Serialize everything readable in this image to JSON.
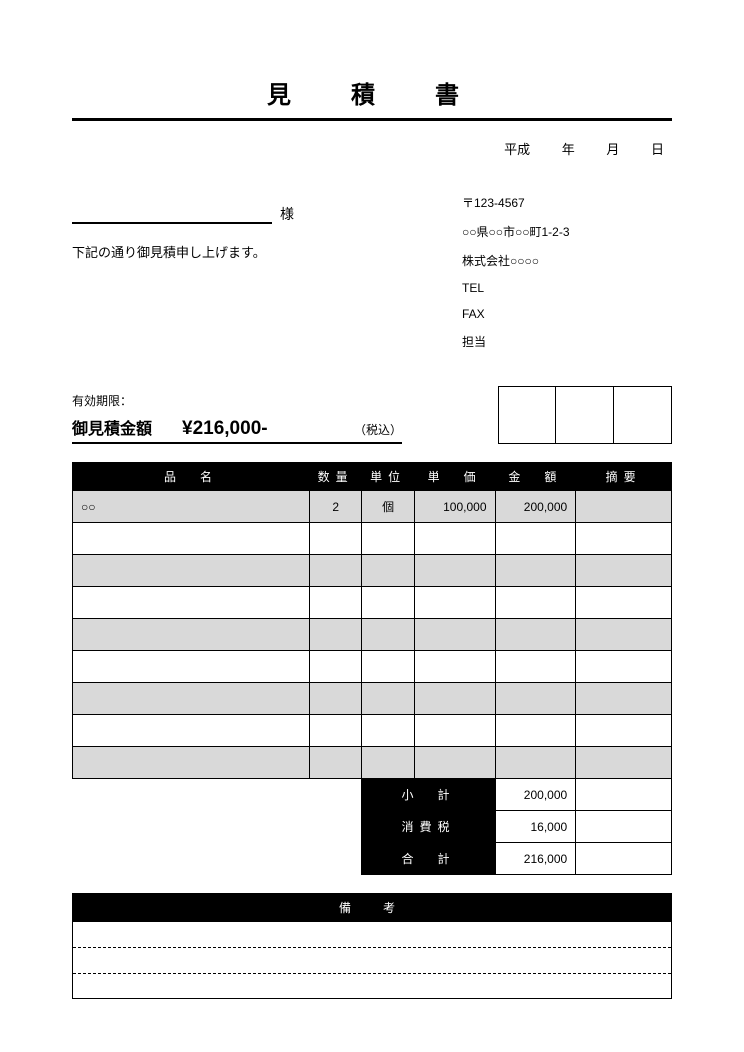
{
  "title": "見　積　書",
  "date": {
    "era": "平成",
    "year": "年",
    "month": "月",
    "day": "日"
  },
  "client": {
    "sama": "様"
  },
  "intro": "下記の通り御見積申し上げます。",
  "sender": {
    "postal": "〒123-4567",
    "address": "○○県○○市○○町1-2-3",
    "company": "株式会社○○○○",
    "tel": "TEL",
    "fax": "FAX",
    "person": "担当"
  },
  "validity_label": "有効期限：",
  "estimate": {
    "label": "御見積金額",
    "value": "¥216,000-",
    "suffix": "（税込）"
  },
  "columns": {
    "name": "品　名",
    "qty": "数量",
    "unit": "単位",
    "price": "単　価",
    "amount": "金　額",
    "note": "摘要"
  },
  "rows": [
    {
      "name": "○○",
      "qty": "2",
      "unit": "個",
      "price": "100,000",
      "amount": "200,000",
      "note": ""
    },
    {
      "name": "",
      "qty": "",
      "unit": "",
      "price": "",
      "amount": "",
      "note": ""
    },
    {
      "name": "",
      "qty": "",
      "unit": "",
      "price": "",
      "amount": "",
      "note": ""
    },
    {
      "name": "",
      "qty": "",
      "unit": "",
      "price": "",
      "amount": "",
      "note": ""
    },
    {
      "name": "",
      "qty": "",
      "unit": "",
      "price": "",
      "amount": "",
      "note": ""
    },
    {
      "name": "",
      "qty": "",
      "unit": "",
      "price": "",
      "amount": "",
      "note": ""
    },
    {
      "name": "",
      "qty": "",
      "unit": "",
      "price": "",
      "amount": "",
      "note": ""
    },
    {
      "name": "",
      "qty": "",
      "unit": "",
      "price": "",
      "amount": "",
      "note": ""
    },
    {
      "name": "",
      "qty": "",
      "unit": "",
      "price": "",
      "amount": "",
      "note": ""
    }
  ],
  "summary": {
    "subtotal_label": "小　計",
    "subtotal": "200,000",
    "tax_label": "消費税",
    "tax": "16,000",
    "total_label": "合　計",
    "total": "216,000"
  },
  "remarks_label": "備　考"
}
